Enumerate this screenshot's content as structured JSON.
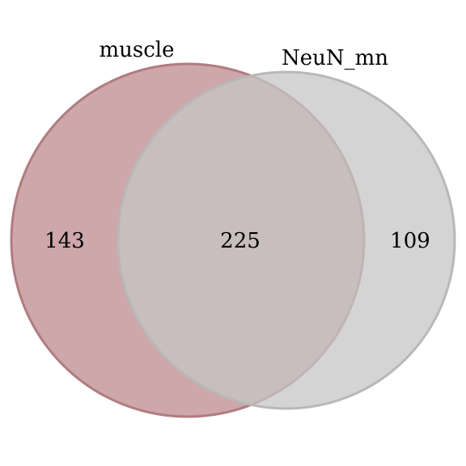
{
  "venn": {
    "sets": [
      {
        "label": "muscle",
        "fill": "#c4989a",
        "stroke": "#b07c80",
        "only_count": "143"
      },
      {
        "label": "NeuN_mn",
        "fill": "#c6c6c6",
        "stroke": "#b8b8b8",
        "only_count": "109"
      }
    ],
    "intersection_count": "225"
  }
}
